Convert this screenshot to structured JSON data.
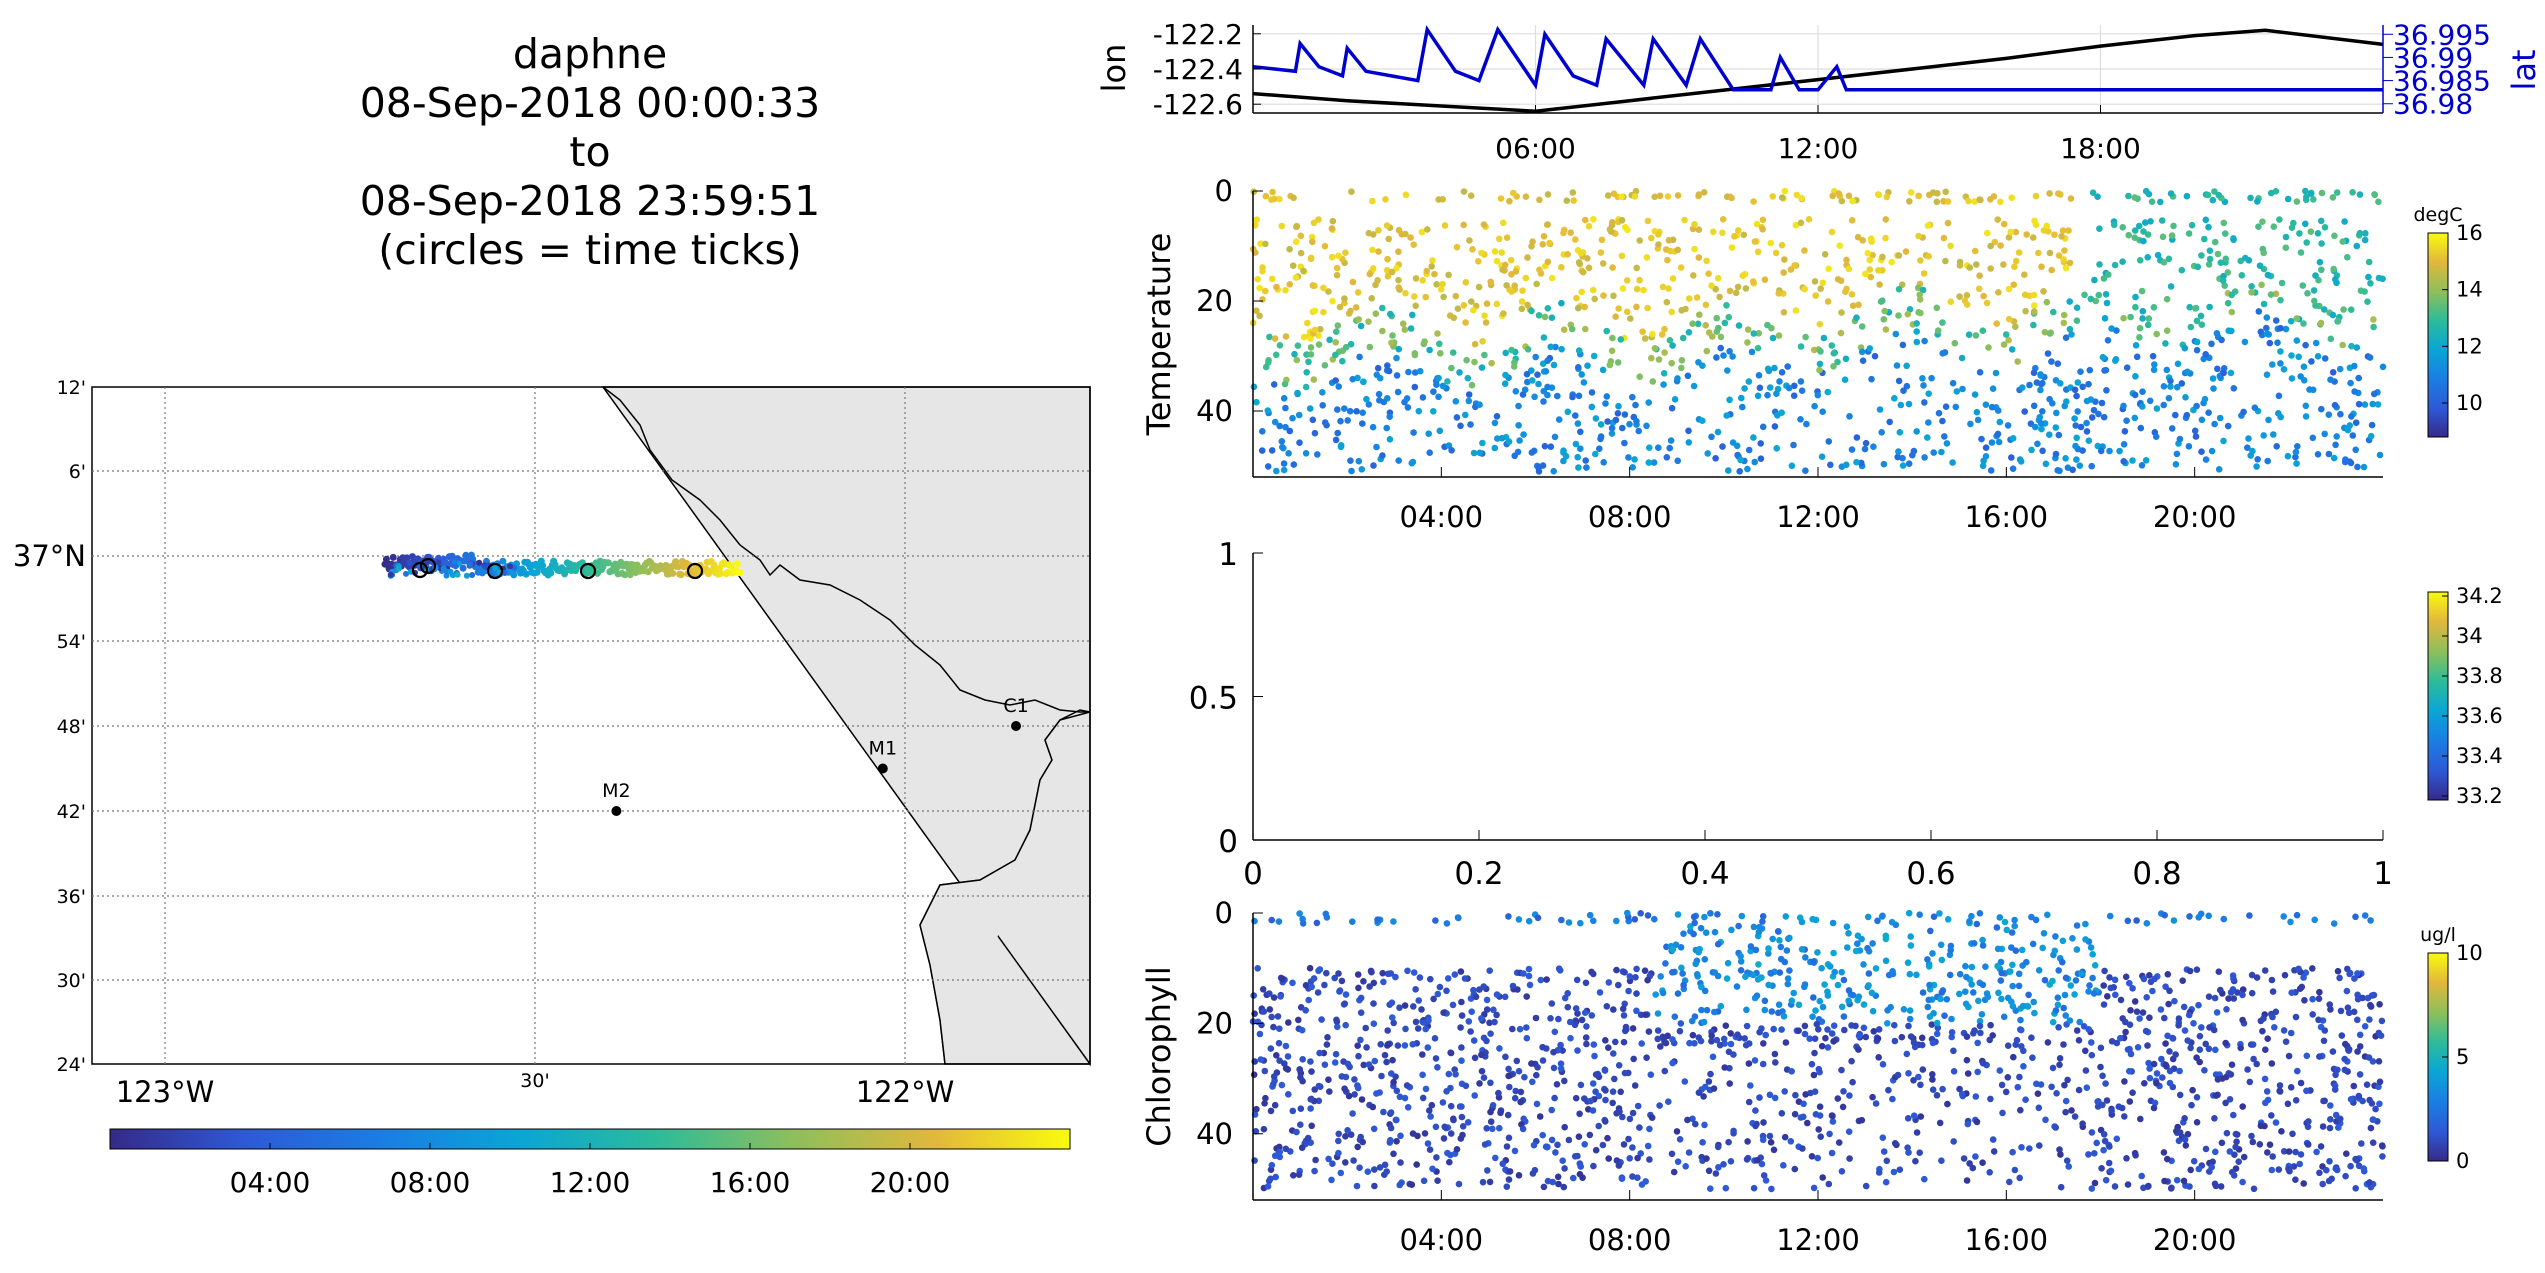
{
  "title": {
    "lines": [
      "daphne",
      "08-Sep-2018 00:00:33",
      "to",
      "08-Sep-2018 23:59:51",
      "(circles = time ticks)"
    ]
  },
  "map": {
    "lat_labels": [
      "12'",
      "6'",
      "37°N",
      "54'",
      "48'",
      "42'",
      "36'",
      "30'",
      "24'"
    ],
    "lon_labels": [
      "123°W",
      "30'",
      "122°W"
    ],
    "stations": [
      {
        "name": "C1",
        "lon": -121.85,
        "lat": 36.8
      },
      {
        "name": "M1",
        "lon": -122.03,
        "lat": 36.75
      },
      {
        "name": "M2",
        "lon": -122.39,
        "lat": 36.7
      }
    ],
    "colorbar_ticks": [
      "04:00",
      "08:00",
      "12:00",
      "16:00",
      "20:00"
    ],
    "colors": {
      "land": "#e6e6e6",
      "grid": "#777777"
    }
  },
  "chart_data": [
    {
      "type": "line",
      "id": "lon-lat",
      "xlabel": "",
      "ylabel": "lon",
      "y2label": "lat",
      "x_ticks": [
        "06:00",
        "12:00",
        "18:00"
      ],
      "x_range_hours": [
        0,
        24
      ],
      "y_ticks": [
        "-122.2",
        "-122.4",
        "-122.6"
      ],
      "y_range": [
        -122.65,
        -122.15
      ],
      "y2_ticks": [
        "36.995",
        "36.99",
        "36.985",
        "36.98"
      ],
      "y2_range": [
        36.978,
        36.997
      ],
      "series": [
        {
          "color": "#000000",
          "axis": "left",
          "x": [
            0,
            2,
            4,
            6,
            8,
            10,
            12,
            14,
            16,
            18,
            20,
            21.5,
            24
          ],
          "values": [
            -122.54,
            -122.58,
            -122.61,
            -122.64,
            -122.58,
            -122.52,
            -122.46,
            -122.4,
            -122.34,
            -122.27,
            -122.21,
            -122.18,
            -122.26
          ]
        },
        {
          "color": "#0000cc",
          "axis": "right",
          "x": [
            0,
            0.9,
            1.0,
            1.4,
            1.9,
            2.0,
            2.4,
            3.5,
            3.7,
            4.3,
            4.8,
            5.2,
            6.0,
            6.2,
            6.8,
            7.3,
            7.5,
            8.3,
            8.5,
            9.2,
            9.5,
            10.2,
            10.4,
            11.0,
            11.2,
            11.6,
            12.0,
            12.4,
            12.6,
            24
          ],
          "values": [
            36.988,
            36.987,
            36.993,
            36.988,
            36.986,
            36.992,
            36.987,
            36.985,
            36.996,
            36.987,
            36.985,
            36.996,
            36.984,
            36.995,
            36.986,
            36.984,
            36.994,
            36.984,
            36.994,
            36.984,
            36.994,
            36.983,
            36.983,
            36.983,
            36.99,
            36.983,
            36.983,
            36.988,
            36.983,
            36.983
          ]
        }
      ]
    },
    {
      "type": "scatter",
      "id": "temperature",
      "ylabel": "Temperature",
      "y_ticks": [
        "0",
        "20",
        "40"
      ],
      "y_range": [
        0,
        52
      ],
      "x_ticks": [
        "04:00",
        "08:00",
        "12:00",
        "16:00",
        "20:00"
      ],
      "colorbar": {
        "label": "degC",
        "ticks": [
          "16",
          "14",
          "12",
          "10"
        ],
        "range": [
          8.8,
          16
        ]
      }
    },
    {
      "type": "scatter",
      "id": "salinity",
      "ylabel": "",
      "x_ticks": [
        "0",
        "0.2",
        "0.4",
        "0.6",
        "0.8",
        "1"
      ],
      "y_ticks": [
        "1",
        "0.5",
        "0"
      ],
      "x_range": [
        0,
        1
      ],
      "y_range": [
        0,
        1
      ],
      "colorbar": {
        "label": "",
        "ticks": [
          "34.2",
          "34",
          "33.8",
          "33.6",
          "33.4",
          "33.2"
        ],
        "range": [
          33.18,
          34.22
        ]
      }
    },
    {
      "type": "scatter",
      "id": "chlorophyll",
      "ylabel": "Chlorophyll",
      "y_ticks": [
        "0",
        "20",
        "40"
      ],
      "y_range": [
        0,
        52
      ],
      "x_ticks": [
        "04:00",
        "08:00",
        "12:00",
        "16:00",
        "20:00"
      ],
      "colorbar": {
        "label": "ug/l",
        "ticks": [
          "10",
          "5",
          "0"
        ],
        "range": [
          0,
          10
        ]
      }
    }
  ]
}
